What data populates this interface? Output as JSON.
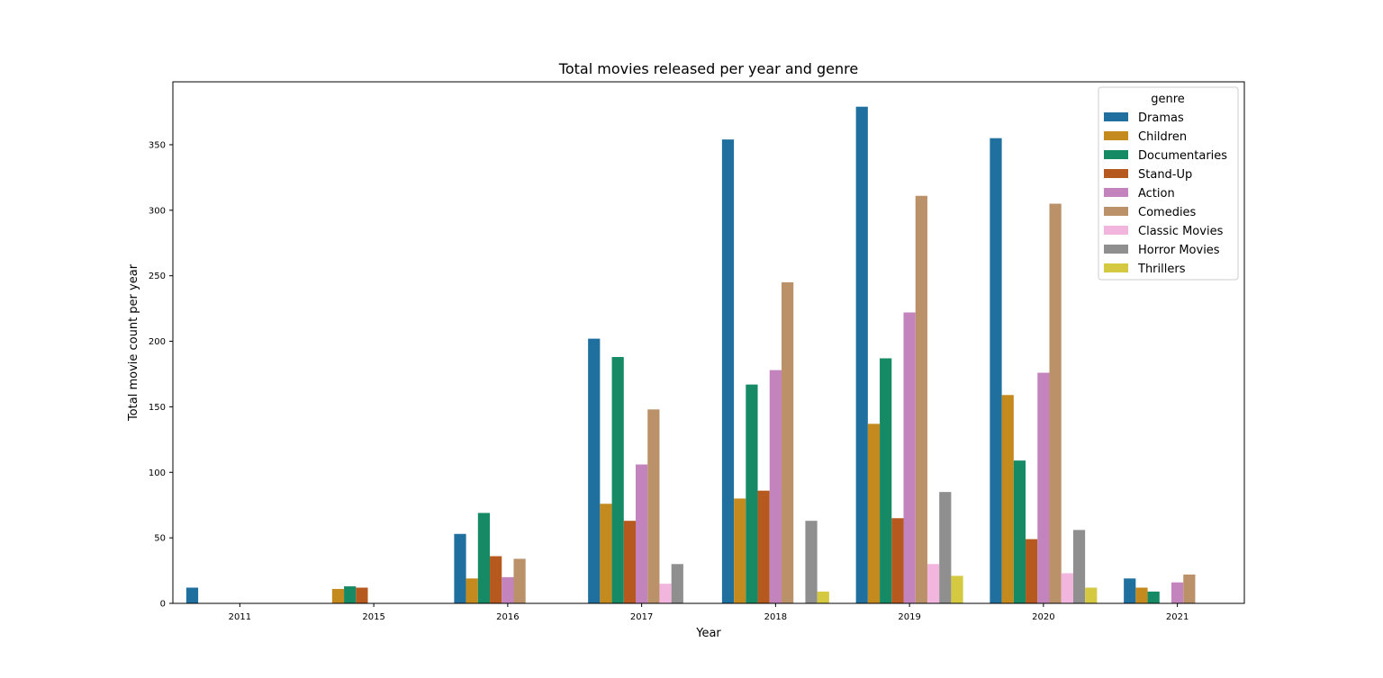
{
  "chart_data": {
    "type": "bar",
    "title": "Total movies released per year and genre",
    "xlabel": "Year",
    "ylabel": "Total movie count per year",
    "ylim": [
      0,
      398
    ],
    "yticks": [
      0,
      50,
      100,
      150,
      200,
      250,
      300,
      350
    ],
    "categories": [
      "2011",
      "2015",
      "2016",
      "2017",
      "2018",
      "2019",
      "2020",
      "2021"
    ],
    "legend": {
      "title": "genre",
      "placement": "top-right"
    },
    "grid": false,
    "series": [
      {
        "name": "Dramas",
        "color": "#1f6f9f",
        "values": [
          12,
          0,
          53,
          202,
          354,
          379,
          355,
          19
        ]
      },
      {
        "name": "Children",
        "color": "#c48a1e",
        "values": [
          0,
          11,
          19,
          76,
          80,
          137,
          159,
          12
        ]
      },
      {
        "name": "Documentaries",
        "color": "#168a65",
        "values": [
          0,
          13,
          69,
          188,
          167,
          187,
          109,
          9
        ]
      },
      {
        "name": "Stand-Up",
        "color": "#b5591f",
        "values": [
          0,
          12,
          36,
          63,
          86,
          65,
          49,
          0
        ]
      },
      {
        "name": "Action",
        "color": "#c384bd",
        "values": [
          0,
          0,
          20,
          106,
          178,
          222,
          176,
          16
        ]
      },
      {
        "name": "Comedies",
        "color": "#bb9169",
        "values": [
          0,
          0,
          34,
          148,
          245,
          311,
          305,
          22
        ]
      },
      {
        "name": "Classic Movies",
        "color": "#f2b6de",
        "values": [
          0,
          0,
          0,
          15,
          0,
          30,
          23,
          0
        ]
      },
      {
        "name": "Horror Movies",
        "color": "#8f8f8f",
        "values": [
          0,
          0,
          0,
          30,
          63,
          85,
          56,
          0
        ]
      },
      {
        "name": "Thrillers",
        "color": "#d5c942",
        "values": [
          0,
          0,
          0,
          0,
          9,
          21,
          12,
          0
        ]
      }
    ]
  }
}
